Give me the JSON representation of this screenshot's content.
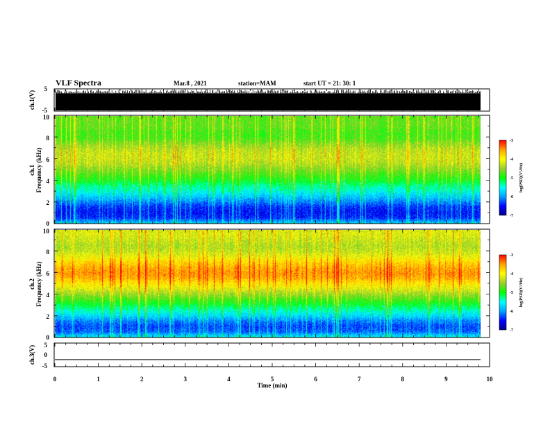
{
  "header": {
    "title": "VLF Spectra",
    "date": "Mar.8 , 2021",
    "station": "station=MAM",
    "start": "start UT = 21: 30: 1"
  },
  "colors": {
    "scale": [
      "#00008b",
      "#0000ff",
      "#00a5ff",
      "#00ffff",
      "#00ff00",
      "#9acd32",
      "#ffff00",
      "#ffa500",
      "#ff0000"
    ]
  },
  "chart_data": [
    {
      "type": "line",
      "id": "ch1_waveform",
      "ylabel": "ch.1(V)",
      "ylim": [
        -5,
        5
      ],
      "yticks": [
        "5",
        "-5"
      ],
      "xlim": [
        0,
        10
      ],
      "description_series": "dense waveform",
      "series": [
        {
          "baseline": 0,
          "amplitude": 5
        }
      ]
    },
    {
      "type": "heatmap",
      "id": "ch1_spectrogram",
      "ylabel": "ch.1\nFrequency (kHz)",
      "ylabel_lines": [
        "ch.1",
        "Frequency (kHz)"
      ],
      "ylim": [
        0,
        10
      ],
      "yticks": [
        "0",
        "2",
        "4",
        "6",
        "8",
        "10"
      ],
      "xlim": [
        0,
        9.8
      ],
      "colorbar": {
        "label": "log(PSD)(V²/Hz)",
        "range": [
          -7,
          -3
        ],
        "ticks": [
          "-3",
          "-4",
          "-5",
          "-6",
          "-7"
        ]
      },
      "psd_profile": {
        "freq_khz": [
          0,
          0.5,
          1,
          1.5,
          2,
          2.5,
          3,
          3.5,
          4,
          4.5,
          5,
          5.5,
          6,
          6.5,
          7,
          7.5,
          8,
          8.5,
          9,
          9.5,
          10
        ],
        "log_psd": [
          -5.8,
          -6.4,
          -6.5,
          -6.4,
          -6.1,
          -5.8,
          -5.5,
          -5.3,
          -5.0,
          -4.8,
          -4.6,
          -4.4,
          -4.3,
          -4.3,
          -4.4,
          -4.6,
          -4.8,
          -4.8,
          -4.7,
          -4.7,
          -4.7
        ]
      }
    },
    {
      "type": "heatmap",
      "id": "ch2_spectrogram",
      "ylabel": "ch.2\nFrequency (kHz)",
      "ylabel_lines": [
        "ch.2",
        "Frequency (kHz)"
      ],
      "ylim": [
        0,
        10
      ],
      "yticks": [
        "0",
        "2",
        "4",
        "6",
        "8",
        "10"
      ],
      "xlim": [
        0,
        9.8
      ],
      "colorbar": {
        "label": "log(PSD)(V²/Hz)",
        "range": [
          -7,
          -3
        ],
        "ticks": [
          "-3",
          "-4",
          "-5",
          "-6",
          "-7"
        ]
      },
      "psd_profile": {
        "freq_khz": [
          0,
          0.5,
          1,
          1.5,
          2,
          2.5,
          3,
          3.5,
          4,
          4.5,
          5,
          5.5,
          6,
          6.5,
          7,
          7.5,
          8,
          8.5,
          9,
          9.5,
          10
        ],
        "log_psd": [
          -5.6,
          -6.2,
          -6.3,
          -6.1,
          -5.7,
          -5.4,
          -5.1,
          -4.8,
          -4.5,
          -4.2,
          -3.9,
          -3.6,
          -3.5,
          -3.6,
          -3.8,
          -4.1,
          -4.3,
          -4.4,
          -4.3,
          -4.2,
          -4.2
        ]
      }
    },
    {
      "type": "line",
      "id": "ch3_waveform",
      "ylabel": "ch.3(V)",
      "ylim": [
        -5,
        5
      ],
      "yticks": [
        "5",
        "0",
        "-5"
      ],
      "xlim": [
        0,
        10
      ],
      "series": [
        {
          "constant": -2.3
        }
      ]
    }
  ],
  "xaxis": {
    "label": "Time (min)",
    "ticks": [
      "0",
      "1",
      "2",
      "3",
      "4",
      "5",
      "6",
      "7",
      "8",
      "9",
      "10"
    ],
    "range": [
      0,
      10
    ]
  }
}
